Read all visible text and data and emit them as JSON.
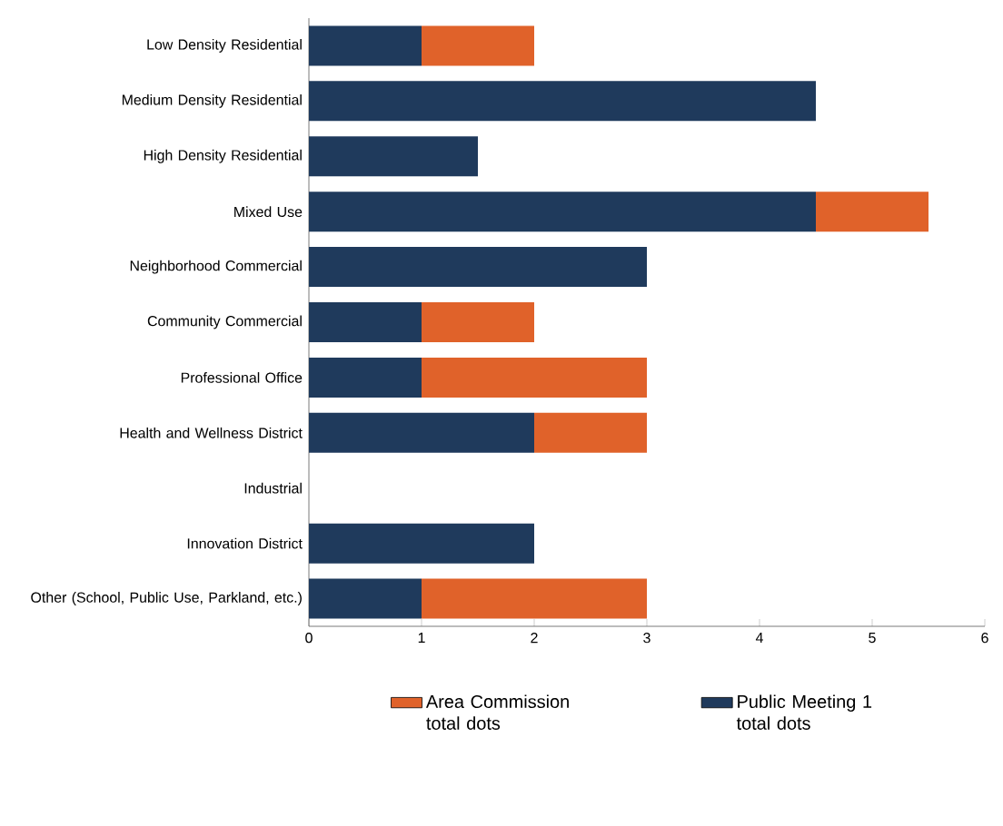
{
  "chart_data": {
    "type": "bar",
    "orientation": "horizontal",
    "stacked": true,
    "categories": [
      "Low Density Residential",
      "Medium Density Residential",
      "High Density Residential",
      "Mixed Use",
      "Neighborhood Commercial",
      "Community Commercial",
      "Professional Office",
      "Health and Wellness District",
      "Industrial",
      "Innovation District",
      "Other (School, Public Use, Parkland, etc.)"
    ],
    "series": [
      {
        "name": "Public Meeting 1 total dots",
        "color": "#1f3a5c",
        "values": [
          1,
          4.5,
          1.5,
          4.5,
          3,
          1,
          1,
          2,
          0,
          2,
          1
        ]
      },
      {
        "name": "Area Commission total dots",
        "color": "#e0622a",
        "values": [
          1,
          0,
          0,
          1,
          0,
          1,
          2,
          1,
          0,
          0,
          2
        ]
      }
    ],
    "xlim": [
      0,
      6
    ],
    "xticks": [
      0,
      1,
      2,
      3,
      4,
      5,
      6
    ],
    "legend": "bottom"
  }
}
